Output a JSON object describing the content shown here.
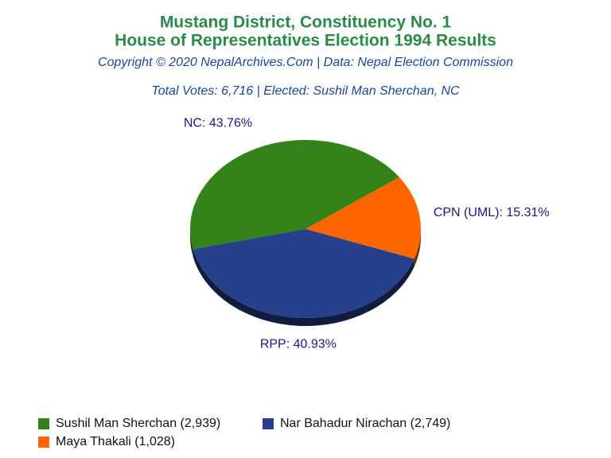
{
  "chart_data": {
    "type": "pie",
    "title": [
      "Mustang District, Constituency No. 1",
      "House of Representatives Election 1994 Results"
    ],
    "subtitle": "Copyright © 2020 NepalArchives.Com | Data: Nepal Election Commission",
    "annotation": "Total Votes: 6,716 | Elected: Sushil Man Sherchan, NC",
    "categories": [
      "NC",
      "CPN (UML)",
      "RPP"
    ],
    "values": [
      43.76,
      15.31,
      40.93
    ],
    "value_labels": [
      "NC: 43.76%",
      "CPN (UML): 15.31%",
      "RPP: 40.93%"
    ],
    "colors": [
      "#33821a",
      "#ff6600",
      "#26408c"
    ],
    "legend": [
      {
        "label": "Sushil Man Sherchan (2,939)",
        "color": "#33821a"
      },
      {
        "label": "Nar Bahadur Nirachan (2,749)",
        "color": "#26408c"
      },
      {
        "label": "Maya Thakali (1,028)",
        "color": "#ff6600"
      }
    ]
  }
}
